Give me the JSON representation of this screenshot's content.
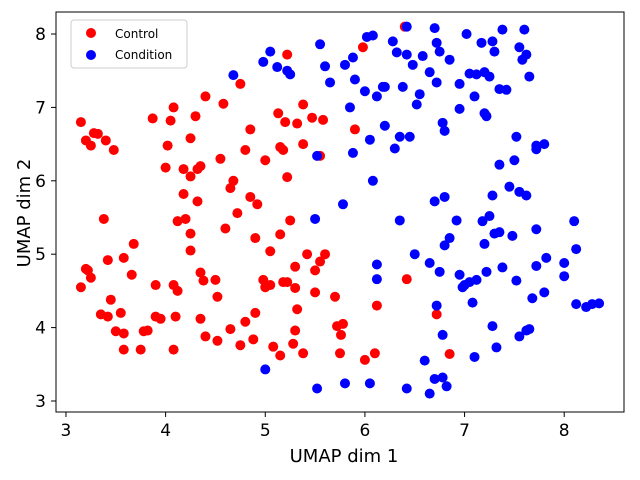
{
  "chart_data": {
    "type": "scatter",
    "xlabel": "UMAP dim 1",
    "ylabel": "UMAP dim 2",
    "xlim": [
      2.9,
      8.6
    ],
    "ylim": [
      2.85,
      8.3
    ],
    "xticks": [
      "3",
      "4",
      "5",
      "6",
      "7",
      "8"
    ],
    "yticks": [
      "3",
      "4",
      "5",
      "6",
      "7",
      "8"
    ],
    "legend_position": "top-left",
    "grid": false,
    "series": [
      {
        "name": "Control",
        "color": "#ff0000",
        "points": [
          [
            3.15,
            6.8
          ],
          [
            3.2,
            6.55
          ],
          [
            3.25,
            6.48
          ],
          [
            3.28,
            6.65
          ],
          [
            3.32,
            6.64
          ],
          [
            3.4,
            6.55
          ],
          [
            3.48,
            6.42
          ],
          [
            3.87,
            6.85
          ],
          [
            4.05,
            6.82
          ],
          [
            4.08,
            7.0
          ],
          [
            4.3,
            6.88
          ],
          [
            4.4,
            7.15
          ],
          [
            4.58,
            7.05
          ],
          [
            4.75,
            7.32
          ],
          [
            4.85,
            6.7
          ],
          [
            5.13,
            6.92
          ],
          [
            5.2,
            6.8
          ],
          [
            5.22,
            7.72
          ],
          [
            5.32,
            6.78
          ],
          [
            5.38,
            7.04
          ],
          [
            5.47,
            6.86
          ],
          [
            5.58,
            6.83
          ],
          [
            5.9,
            6.7
          ],
          [
            5.98,
            7.82
          ],
          [
            6.4,
            8.1
          ],
          [
            4.02,
            6.48
          ],
          [
            4.18,
            6.16
          ],
          [
            4.25,
            6.58
          ],
          [
            4.25,
            6.06
          ],
          [
            4.32,
            6.16
          ],
          [
            4.35,
            6.2
          ],
          [
            4.55,
            6.3
          ],
          [
            4.68,
            6.0
          ],
          [
            4.65,
            5.9
          ],
          [
            4.8,
            6.42
          ],
          [
            4.85,
            5.78
          ],
          [
            4.92,
            5.68
          ],
          [
            5.0,
            6.28
          ],
          [
            5.15,
            6.46
          ],
          [
            5.18,
            6.42
          ],
          [
            5.22,
            6.05
          ],
          [
            5.38,
            6.5
          ],
          [
            5.55,
            6.34
          ],
          [
            4.0,
            6.18
          ],
          [
            4.18,
            5.82
          ],
          [
            4.32,
            5.72
          ],
          [
            4.12,
            5.45
          ],
          [
            4.2,
            5.48
          ],
          [
            4.25,
            5.28
          ],
          [
            4.25,
            5.05
          ],
          [
            4.6,
            5.35
          ],
          [
            4.72,
            5.56
          ],
          [
            4.9,
            5.22
          ],
          [
            5.05,
            5.04
          ],
          [
            5.15,
            5.27
          ],
          [
            5.25,
            5.46
          ],
          [
            5.3,
            4.83
          ],
          [
            5.42,
            5.0
          ],
          [
            5.5,
            4.78
          ],
          [
            5.55,
            4.9
          ],
          [
            5.6,
            5.0
          ],
          [
            3.2,
            4.8
          ],
          [
            3.15,
            4.55
          ],
          [
            3.22,
            4.78
          ],
          [
            3.25,
            4.68
          ],
          [
            3.38,
            5.48
          ],
          [
            3.42,
            4.92
          ],
          [
            3.58,
            4.95
          ],
          [
            3.66,
            4.72
          ],
          [
            3.68,
            5.14
          ],
          [
            3.9,
            4.58
          ],
          [
            4.08,
            4.58
          ],
          [
            4.12,
            4.5
          ],
          [
            4.35,
            4.75
          ],
          [
            4.38,
            4.64
          ],
          [
            4.5,
            4.65
          ],
          [
            4.52,
            4.42
          ],
          [
            4.98,
            4.65
          ],
          [
            5.05,
            4.58
          ],
          [
            5.18,
            4.62
          ],
          [
            5.3,
            4.54
          ],
          [
            5.5,
            4.48
          ],
          [
            5.7,
            4.42
          ],
          [
            3.35,
            4.18
          ],
          [
            3.42,
            4.15
          ],
          [
            3.45,
            4.38
          ],
          [
            3.5,
            3.95
          ],
          [
            3.55,
            4.2
          ],
          [
            3.58,
            3.92
          ],
          [
            3.58,
            3.7
          ],
          [
            3.75,
            3.7
          ],
          [
            3.78,
            3.95
          ],
          [
            3.82,
            3.96
          ],
          [
            3.9,
            4.15
          ],
          [
            3.95,
            4.12
          ],
          [
            4.1,
            4.15
          ],
          [
            4.08,
            3.7
          ],
          [
            4.35,
            4.12
          ],
          [
            4.4,
            3.88
          ],
          [
            4.52,
            3.82
          ],
          [
            4.65,
            3.98
          ],
          [
            4.75,
            3.76
          ],
          [
            4.8,
            4.08
          ],
          [
            4.88,
            3.84
          ],
          [
            4.9,
            4.2
          ],
          [
            5.0,
            4.55
          ],
          [
            5.08,
            3.74
          ],
          [
            5.15,
            3.62
          ],
          [
            5.22,
            4.62
          ],
          [
            5.28,
            3.78
          ],
          [
            5.3,
            3.96
          ],
          [
            5.32,
            4.25
          ],
          [
            5.38,
            3.65
          ],
          [
            5.72,
            4.02
          ],
          [
            5.78,
            4.05
          ],
          [
            5.76,
            3.9
          ],
          [
            5.75,
            3.65
          ],
          [
            6.0,
            3.56
          ],
          [
            6.1,
            3.65
          ],
          [
            6.12,
            4.3
          ],
          [
            6.42,
            4.66
          ],
          [
            6.72,
            4.18
          ],
          [
            6.85,
            3.64
          ]
        ]
      },
      {
        "name": "Condition",
        "color": "#0000ff",
        "points": [
          [
            4.68,
            7.44
          ],
          [
            4.98,
            7.62
          ],
          [
            5.05,
            7.76
          ],
          [
            5.12,
            7.55
          ],
          [
            5.22,
            7.5
          ],
          [
            5.25,
            7.45
          ],
          [
            5.55,
            7.86
          ],
          [
            5.6,
            7.56
          ],
          [
            5.65,
            7.34
          ],
          [
            5.8,
            7.58
          ],
          [
            5.88,
            7.68
          ],
          [
            5.9,
            7.38
          ],
          [
            6.0,
            7.22
          ],
          [
            6.02,
            7.96
          ],
          [
            6.08,
            7.98
          ],
          [
            6.12,
            7.15
          ],
          [
            6.18,
            7.28
          ],
          [
            6.28,
            7.9
          ],
          [
            6.32,
            7.75
          ],
          [
            6.38,
            7.28
          ],
          [
            6.42,
            7.72
          ],
          [
            6.48,
            7.58
          ],
          [
            6.58,
            7.7
          ],
          [
            6.65,
            7.48
          ],
          [
            6.72,
            7.34
          ],
          [
            6.75,
            7.76
          ],
          [
            6.85,
            7.65
          ],
          [
            6.95,
            7.32
          ],
          [
            7.05,
            7.46
          ],
          [
            7.12,
            7.45
          ],
          [
            7.2,
            7.48
          ],
          [
            7.25,
            7.42
          ],
          [
            7.35,
            7.25
          ],
          [
            7.42,
            7.24
          ],
          [
            7.55,
            7.82
          ],
          [
            7.58,
            7.65
          ],
          [
            7.62,
            7.72
          ],
          [
            7.65,
            7.42
          ],
          [
            6.42,
            8.1
          ],
          [
            6.7,
            8.08
          ],
          [
            7.02,
            8.0
          ],
          [
            7.17,
            7.88
          ],
          [
            7.28,
            7.9
          ],
          [
            7.38,
            8.06
          ],
          [
            7.6,
            8.06
          ],
          [
            6.72,
            7.88
          ],
          [
            7.3,
            7.76
          ],
          [
            5.52,
            6.34
          ],
          [
            5.88,
            6.38
          ],
          [
            5.85,
            7.0
          ],
          [
            6.05,
            6.56
          ],
          [
            6.2,
            7.28
          ],
          [
            6.2,
            6.75
          ],
          [
            6.3,
            6.44
          ],
          [
            6.35,
            6.6
          ],
          [
            6.45,
            6.6
          ],
          [
            6.52,
            7.04
          ],
          [
            6.55,
            7.18
          ],
          [
            6.8,
            6.68
          ],
          [
            6.78,
            6.79
          ],
          [
            6.95,
            6.98
          ],
          [
            7.1,
            7.15
          ],
          [
            7.2,
            6.92
          ],
          [
            7.22,
            6.88
          ],
          [
            7.52,
            6.6
          ],
          [
            7.72,
            6.48
          ],
          [
            7.72,
            6.43
          ],
          [
            7.8,
            6.5
          ],
          [
            7.35,
            6.22
          ],
          [
            7.5,
            6.28
          ],
          [
            7.45,
            5.92
          ],
          [
            7.55,
            5.85
          ],
          [
            7.62,
            5.8
          ],
          [
            7.28,
            5.8
          ],
          [
            6.08,
            6.0
          ],
          [
            5.78,
            5.68
          ],
          [
            6.7,
            5.72
          ],
          [
            6.8,
            5.78
          ],
          [
            6.35,
            5.46
          ],
          [
            5.5,
            5.48
          ],
          [
            6.12,
            4.86
          ],
          [
            6.12,
            4.66
          ],
          [
            6.5,
            5.0
          ],
          [
            6.65,
            4.88
          ],
          [
            6.75,
            4.76
          ],
          [
            6.8,
            5.12
          ],
          [
            6.85,
            5.22
          ],
          [
            6.92,
            5.46
          ],
          [
            6.95,
            4.72
          ],
          [
            7.0,
            4.58
          ],
          [
            7.05,
            4.62
          ],
          [
            7.12,
            4.65
          ],
          [
            7.22,
            4.76
          ],
          [
            7.2,
            5.14
          ],
          [
            7.18,
            5.45
          ],
          [
            7.25,
            5.52
          ],
          [
            7.3,
            5.28
          ],
          [
            7.35,
            5.3
          ],
          [
            7.38,
            4.82
          ],
          [
            7.48,
            5.25
          ],
          [
            7.52,
            4.64
          ],
          [
            7.72,
            5.34
          ],
          [
            7.72,
            4.84
          ],
          [
            7.82,
            4.95
          ],
          [
            8.0,
            4.88
          ],
          [
            8.0,
            4.7
          ],
          [
            8.1,
            5.45
          ],
          [
            8.12,
            5.07
          ],
          [
            6.98,
            4.55
          ],
          [
            7.08,
            4.34
          ],
          [
            6.72,
            4.3
          ],
          [
            5.0,
            3.43
          ],
          [
            5.52,
            3.17
          ],
          [
            5.8,
            3.24
          ],
          [
            6.05,
            3.24
          ],
          [
            6.42,
            3.17
          ],
          [
            6.6,
            3.55
          ],
          [
            6.65,
            3.1
          ],
          [
            6.7,
            3.3
          ],
          [
            6.78,
            3.32
          ],
          [
            6.78,
            3.9
          ],
          [
            6.82,
            3.2
          ],
          [
            7.1,
            3.6
          ],
          [
            7.28,
            4.02
          ],
          [
            7.32,
            3.73
          ],
          [
            7.55,
            3.88
          ],
          [
            7.62,
            3.96
          ],
          [
            7.65,
            3.98
          ],
          [
            7.68,
            4.4
          ],
          [
            7.8,
            4.48
          ],
          [
            8.12,
            4.32
          ],
          [
            8.22,
            4.28
          ],
          [
            8.28,
            4.32
          ],
          [
            8.35,
            4.33
          ]
        ]
      }
    ]
  }
}
